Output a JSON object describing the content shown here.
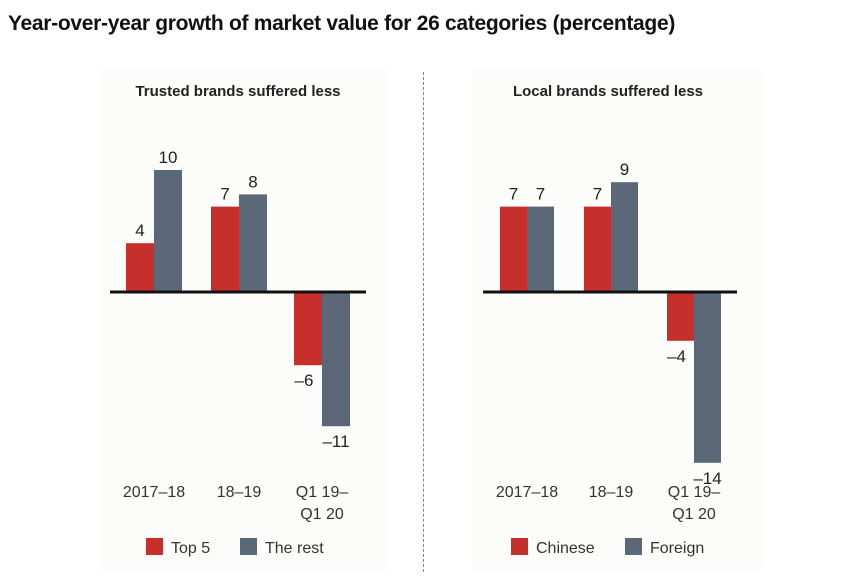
{
  "title": "Year-over-year growth of market value for 26 categories (percentage)",
  "colors": {
    "series_a": "#c62f2b",
    "series_b": "#5b6878",
    "axis": "#111111",
    "text": "#333333"
  },
  "chart_data": [
    {
      "type": "bar",
      "title": "Trusted brands suffered less",
      "categories": [
        "2017–18",
        "18–19",
        "Q1 19–\nQ1 20"
      ],
      "category_lines": [
        [
          "2017–18"
        ],
        [
          "18–19"
        ],
        [
          "Q1 19–",
          "Q1 20"
        ]
      ],
      "series": [
        {
          "name": "Top 5",
          "values": [
            4,
            7,
            -6
          ]
        },
        {
          "name": "The rest",
          "values": [
            10,
            8,
            -11
          ]
        }
      ],
      "value_labels": [
        [
          "4",
          "7",
          "–6"
        ],
        [
          "10",
          "8",
          "–11"
        ]
      ],
      "xlabel": "",
      "ylabel": "",
      "ylim": [
        -14,
        10
      ],
      "grid": false,
      "legend": "bottom"
    },
    {
      "type": "bar",
      "title": "Local brands suffered less",
      "categories": [
        "2017–18",
        "18–19",
        "Q1 19–\nQ1 20"
      ],
      "category_lines": [
        [
          "2017–18"
        ],
        [
          "18–19"
        ],
        [
          "Q1 19–",
          "Q1 20"
        ]
      ],
      "series": [
        {
          "name": "Chinese",
          "values": [
            7,
            7,
            -4
          ]
        },
        {
          "name": "Foreign",
          "values": [
            7,
            9,
            -14
          ]
        }
      ],
      "value_labels": [
        [
          "7",
          "7",
          "–4"
        ],
        [
          "7",
          "9",
          "–14"
        ]
      ],
      "xlabel": "",
      "ylabel": "",
      "ylim": [
        -14,
        10
      ],
      "grid": false,
      "legend": "bottom"
    }
  ]
}
